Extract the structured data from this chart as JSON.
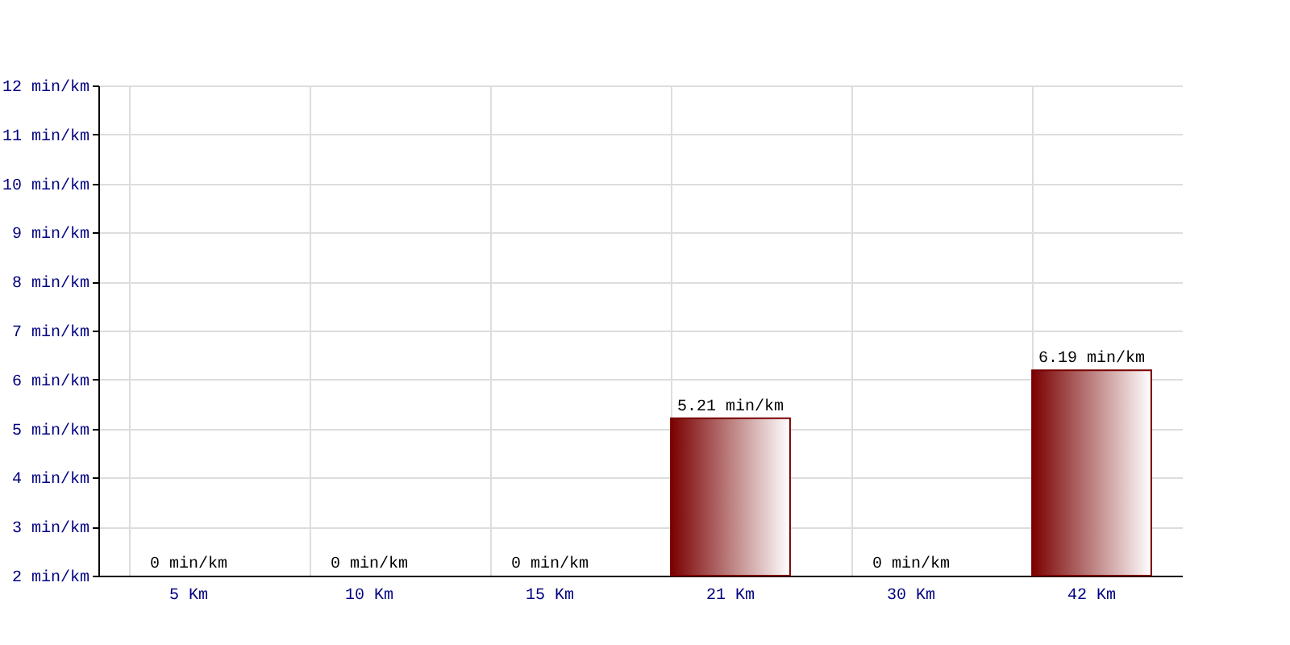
{
  "chart_data": {
    "type": "bar",
    "categories": [
      "5 Km",
      "10 Km",
      "15 Km",
      "21 Km",
      "30 Km",
      "42 Km"
    ],
    "series": [
      {
        "color": "#7a0000",
        "values": [
          null,
          null,
          null,
          5.21,
          null,
          6.19
        ],
        "value_labels": [
          "0 min/km",
          "0 min/km",
          "0 min/km",
          "5.21 min/km",
          "0 min/km",
          "6.19 min/km"
        ]
      }
    ],
    "ylim": [
      2,
      12
    ],
    "yticks": [
      {
        "value": 2,
        "label": "2 min/km"
      },
      {
        "value": 3,
        "label": "3 min/km"
      },
      {
        "value": 4,
        "label": "4 min/km"
      },
      {
        "value": 5,
        "label": "5 min/km"
      },
      {
        "value": 6,
        "label": "6 min/km"
      },
      {
        "value": 7,
        "label": "7 min/km"
      },
      {
        "value": 8,
        "label": "8 min/km"
      },
      {
        "value": 9,
        "label": "9 min/km"
      },
      {
        "value": 10,
        "label": "10 min/km"
      },
      {
        "value": 11,
        "label": "11 min/km"
      },
      {
        "value": 12,
        "label": "12 min/km"
      }
    ],
    "grid": true
  }
}
